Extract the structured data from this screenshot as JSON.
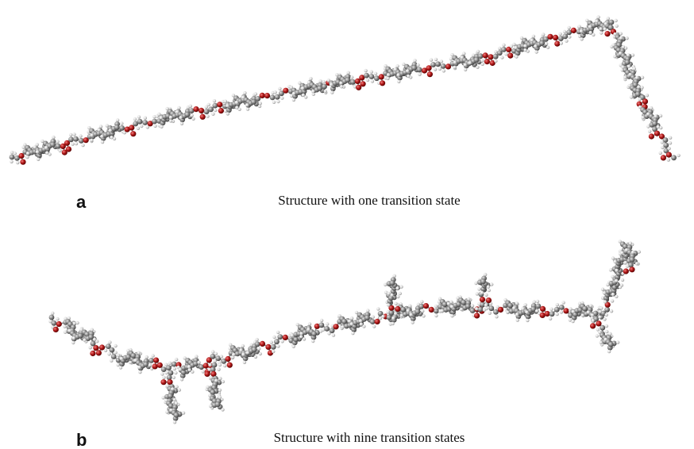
{
  "panels": [
    {
      "label": "a",
      "caption": "Structure with one transition state"
    },
    {
      "label": "b",
      "caption": "Structure with nine transition states"
    }
  ]
}
